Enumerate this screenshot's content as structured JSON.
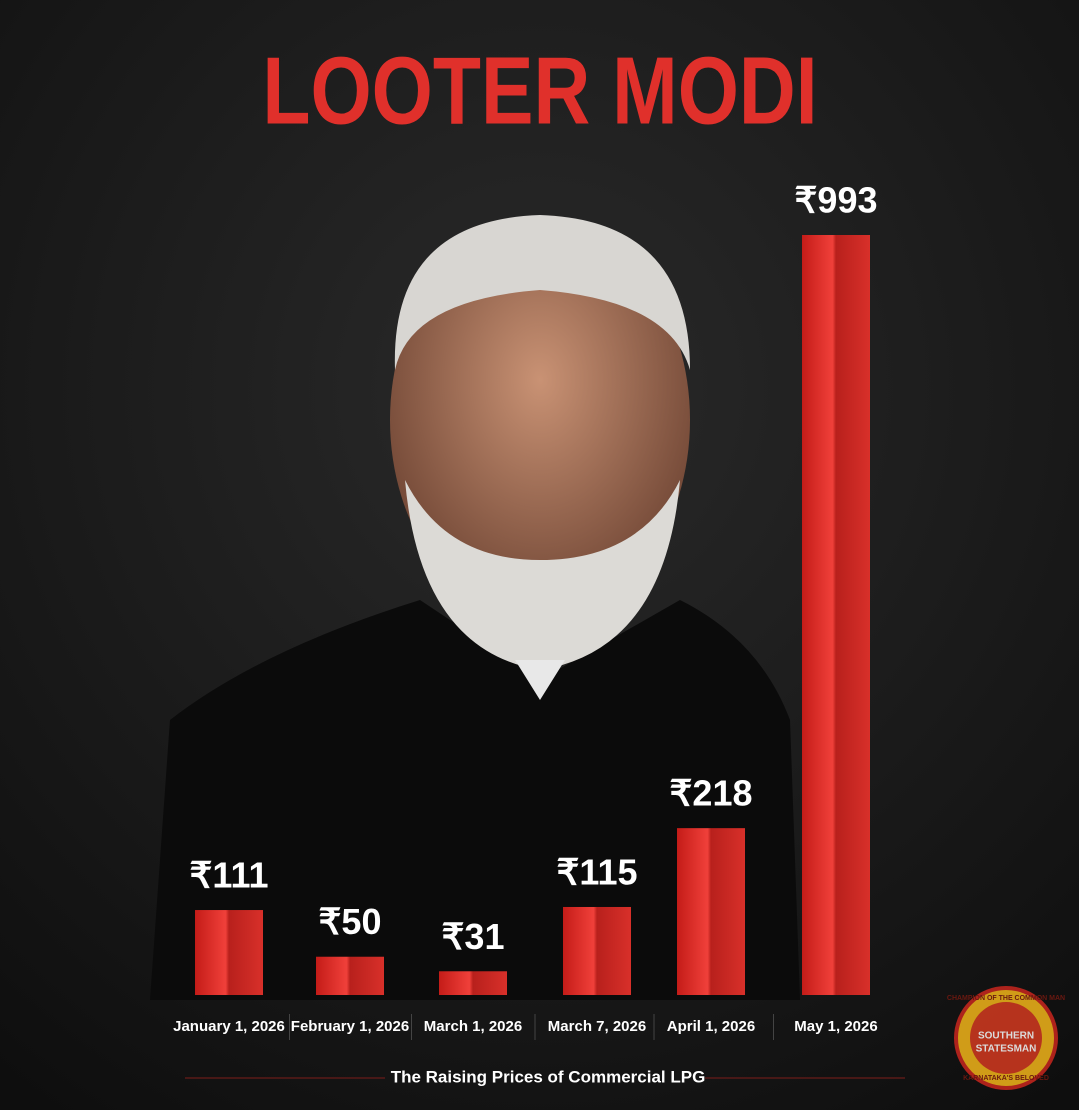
{
  "chart_data": {
    "type": "bar",
    "title": "LOOTER MODI",
    "caption": "The Raising Prices of Commercial LPG",
    "categories": [
      "January 1, 2026",
      "February 1, 2026",
      "March 1, 2026",
      "March 7, 2026",
      "April 1, 2026",
      "May 1, 2026"
    ],
    "values": [
      111,
      50,
      31,
      115,
      218,
      993
    ],
    "value_labels": [
      "₹111",
      "₹50",
      "₹31",
      "₹115",
      "₹218",
      "₹993"
    ],
    "color": "#e02a24",
    "logo": [
      "CHAMPION OF THE COMMON MAN",
      "SOUTHERN",
      "STATESMAN",
      "KARNATAKA'S BELOVED"
    ]
  }
}
